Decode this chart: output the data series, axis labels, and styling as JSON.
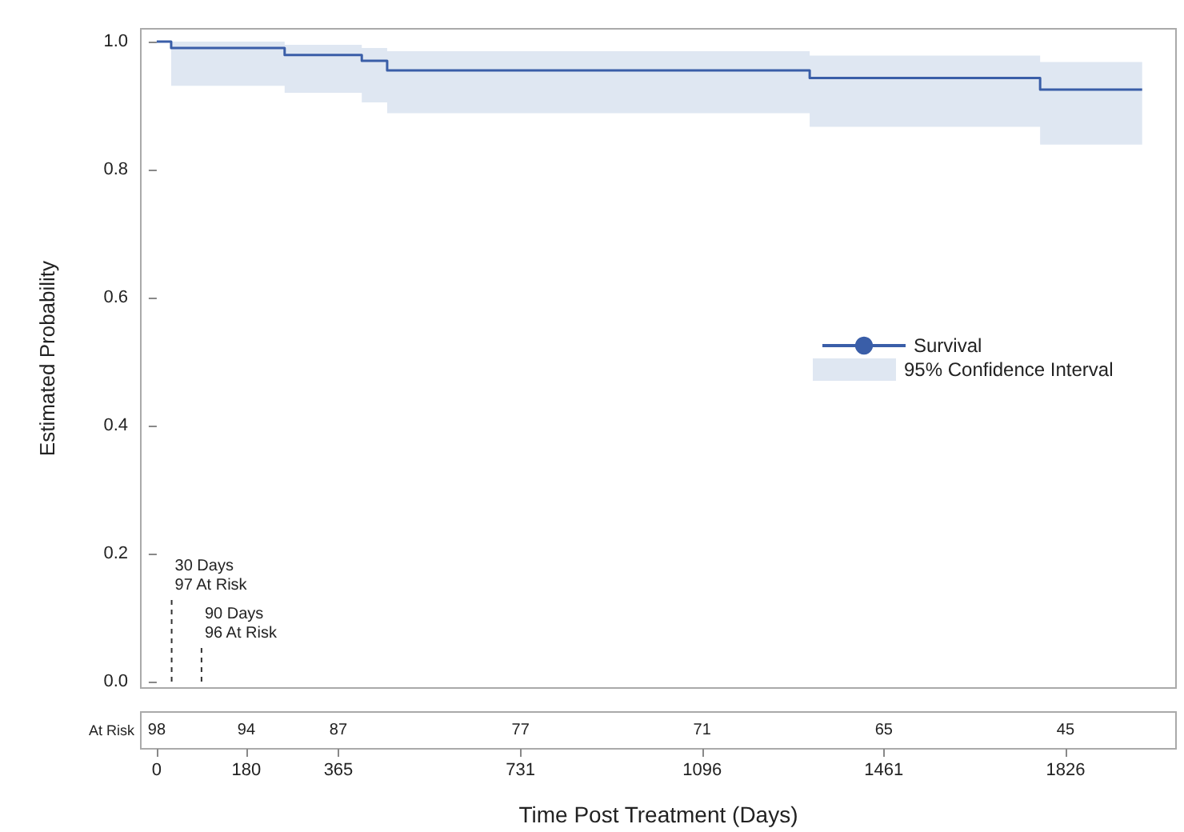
{
  "chart_data": {
    "type": "step",
    "xlabel": "Time Post Treatment (Days)",
    "ylabel": "Estimated Probability",
    "xlim": [
      -32,
      2048
    ],
    "xticks": [
      0,
      180,
      365,
      731,
      1096,
      1461,
      1826
    ],
    "ylim": [
      -0.01,
      1.02
    ],
    "yticks": [
      {
        "value": 0,
        "label": "0.0"
      },
      {
        "value": 0.2,
        "label": "0.2"
      },
      {
        "value": 0.4,
        "label": "0.4"
      },
      {
        "value": 0.6,
        "label": "0.6"
      },
      {
        "value": 0.8,
        "label": "0.8"
      },
      {
        "value": 1,
        "label": "1.0"
      }
    ],
    "series": [
      {
        "name": "Survival",
        "color": "#3a5ea8",
        "x": [
          0,
          29,
          257,
          412,
          463,
          1312,
          1775,
          1980
        ],
        "values": [
          1,
          0.99,
          0.979,
          0.97,
          0.955,
          0.943,
          0.925,
          0.925
        ],
        "lower": [
          null,
          0.931,
          0.92,
          0.905,
          0.888,
          0.867,
          0.839,
          0.839
        ],
        "upper": [
          null,
          1.0,
          0.995,
          0.99,
          0.985,
          0.978,
          0.968,
          0.968
        ]
      }
    ],
    "ref_lines": [
      {
        "axis": "x",
        "value": 30,
        "label": "30 Days\n97 At Risk",
        "line_style": "dashed",
        "color": "#333333"
      },
      {
        "axis": "x",
        "value": 90,
        "label": "90 Days\n96 At Risk",
        "line_style": "dashed",
        "color": "#333333"
      }
    ],
    "annotations": [
      "95% Confidence Interval",
      "At Risk",
      "98",
      "94",
      "87",
      "77",
      "71",
      "65",
      "45"
    ],
    "legend": "right",
    "grid": false,
    "line_style": "solid",
    "marker": "none"
  }
}
